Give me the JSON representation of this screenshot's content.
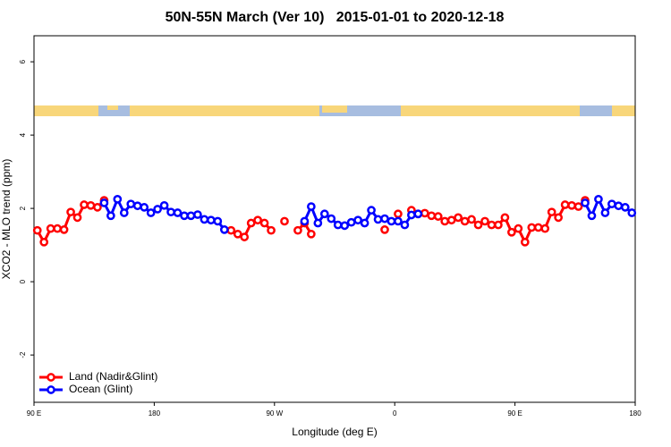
{
  "chart_data": {
    "type": "line",
    "title": "50N-55N March (Ver 10)   2015-01-01 to 2020-12-18",
    "x_label": "Longitude (deg E)",
    "y_label": "XCO2 - MLO trend (ppm)",
    "x": [
      92.5,
      97.5,
      102.5,
      107.5,
      112.5,
      117.5,
      122.5,
      127.5,
      132.5,
      137.5,
      142.5,
      147.5,
      152.5,
      157.5,
      162.5,
      167.5,
      172.5,
      177.5,
      182.5,
      187.5,
      192.5,
      197.5,
      202.5,
      207.5,
      212.5,
      217.5,
      222.5,
      227.5,
      232.5,
      237.5,
      242.5,
      247.5,
      252.5,
      257.5,
      262.5,
      267.5,
      272.5,
      277.5,
      282.5,
      287.5,
      292.5,
      297.5,
      302.5,
      307.5,
      312.5,
      317.5,
      322.5,
      327.5,
      332.5,
      337.5,
      342.5,
      347.5,
      352.5,
      357.5,
      362.5,
      367.5,
      372.5,
      377.5,
      382.5,
      387.5,
      392.5,
      397.5,
      402.5,
      407.5,
      412.5,
      417.5,
      422.5,
      427.5,
      432.5,
      437.5,
      442.5,
      447.5,
      452.5,
      457.5,
      462.5,
      467.5,
      472.5,
      477.5,
      482.5,
      487.5,
      492.5,
      497.5,
      502.5,
      507.5,
      512.5,
      517.5,
      522.5,
      527.5,
      532.5,
      537.5
    ],
    "series": [
      {
        "name": "Land (Nadir&Glint)",
        "color": "#ff0000",
        "values": [
          1.4,
          1.08,
          1.45,
          1.45,
          1.42,
          1.9,
          1.75,
          2.1,
          2.08,
          2.03,
          2.22,
          null,
          null,
          null,
          null,
          null,
          null,
          null,
          null,
          null,
          null,
          null,
          null,
          null,
          null,
          null,
          null,
          null,
          null,
          1.4,
          1.3,
          1.22,
          1.6,
          1.68,
          1.6,
          1.4,
          null,
          1.65,
          null,
          1.4,
          1.6,
          1.3,
          null,
          null,
          null,
          null,
          null,
          null,
          null,
          null,
          null,
          null,
          1.42,
          null,
          1.85,
          null,
          1.95,
          1.85,
          1.87,
          1.8,
          1.78,
          1.65,
          1.68,
          1.75,
          1.65,
          1.7,
          1.55,
          1.65,
          1.55,
          1.55,
          1.75,
          1.35,
          1.45,
          1.08,
          1.48,
          1.48,
          1.45,
          1.9,
          1.75,
          2.1,
          2.08,
          2.05,
          2.22,
          null,
          null,
          null,
          null,
          null,
          null,
          null
        ]
      },
      {
        "name": "Ocean (Glint)",
        "color": "#0000ff",
        "values": [
          null,
          null,
          null,
          null,
          null,
          null,
          null,
          null,
          null,
          null,
          2.15,
          1.8,
          2.25,
          1.88,
          2.12,
          2.07,
          2.03,
          1.88,
          1.98,
          2.08,
          1.9,
          1.88,
          1.8,
          1.8,
          1.83,
          1.7,
          1.68,
          1.65,
          1.42,
          null,
          null,
          null,
          null,
          null,
          null,
          null,
          null,
          null,
          null,
          null,
          1.65,
          2.05,
          1.6,
          1.85,
          1.72,
          1.55,
          1.53,
          1.62,
          1.68,
          1.6,
          1.95,
          1.7,
          1.72,
          1.65,
          1.65,
          1.55,
          1.82,
          1.85,
          null,
          null,
          null,
          null,
          null,
          null,
          null,
          null,
          null,
          null,
          null,
          null,
          null,
          null,
          null,
          null,
          null,
          null,
          null,
          null,
          null,
          null,
          null,
          null,
          2.15,
          1.8,
          2.25,
          1.88,
          2.12,
          2.07,
          2.03,
          1.88
        ]
      }
    ],
    "xlim": [
      90,
      540
    ],
    "xticks": [
      {
        "value": 90,
        "label": "90 E"
      },
      180,
      {
        "value": 270,
        "label": "90 W"
      },
      {
        "value": 360,
        "label": "0"
      },
      {
        "value": 450,
        "label": "90 E"
      },
      {
        "value": 540,
        "label": "180"
      }
    ],
    "ylim": [
      -3.29,
      6.71
    ],
    "yticks": [
      -2,
      0,
      2,
      4,
      6
    ],
    "legend": "bottomleft",
    "grid": false
  }
}
